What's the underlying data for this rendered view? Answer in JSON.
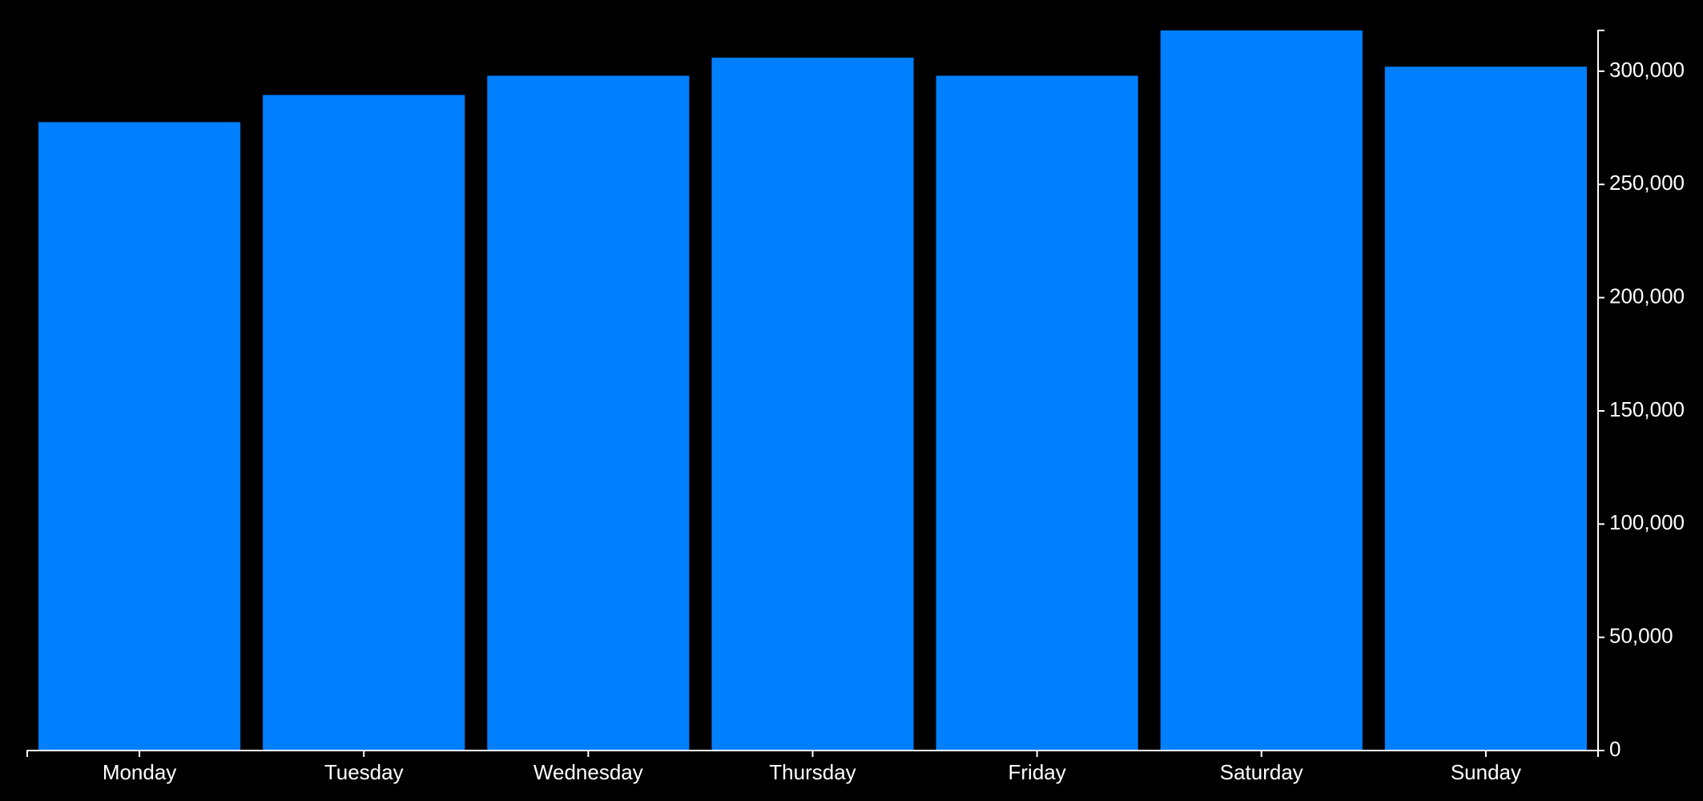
{
  "chart_data": {
    "type": "bar",
    "categories": [
      "Monday",
      "Tuesday",
      "Wednesday",
      "Thursday",
      "Friday",
      "Saturday",
      "Sunday"
    ],
    "values": [
      277500,
      289500,
      298000,
      306000,
      298000,
      318000,
      302000
    ],
    "color": "#007fff",
    "ylim": [
      0,
      318000
    ],
    "yticks": [
      0,
      {
        "value": 50000,
        "label": "50,000"
      },
      {
        "value": 100000,
        "label": "100,000"
      },
      {
        "value": 150000,
        "label": "150,000"
      },
      {
        "value": 200000,
        "label": "200,000"
      },
      {
        "value": 250000,
        "label": "250,000"
      },
      {
        "value": 300000,
        "label": "300,000"
      }
    ],
    "grid": false
  }
}
